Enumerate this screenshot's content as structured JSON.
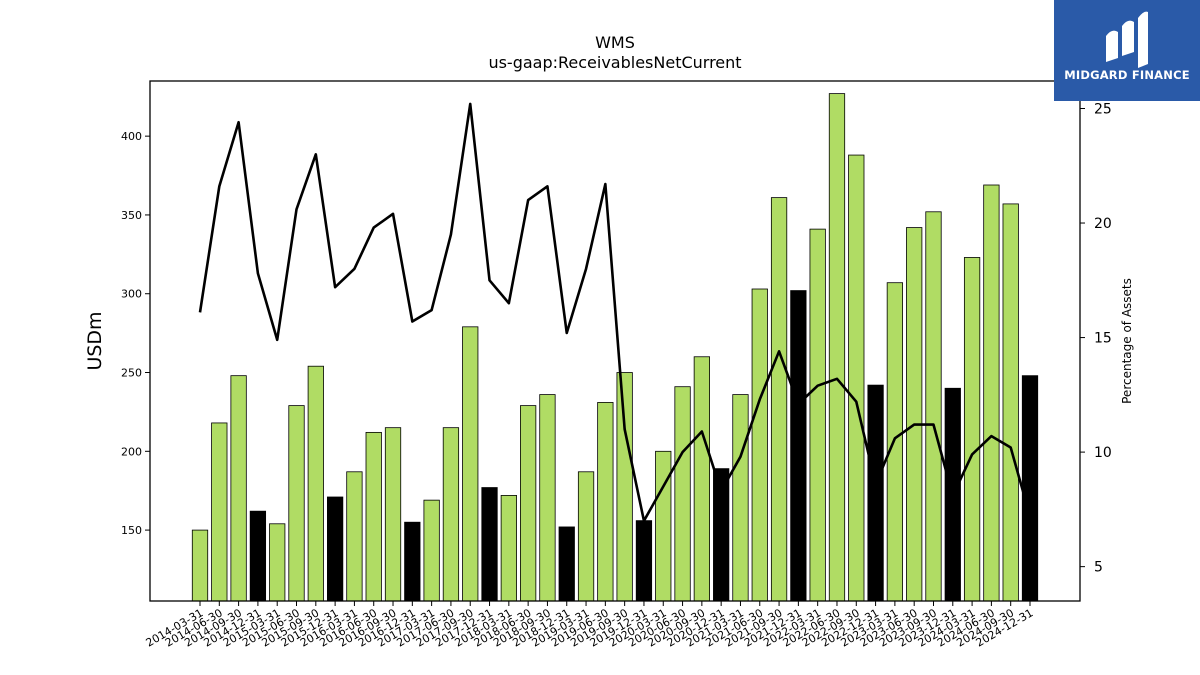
{
  "chart_data": {
    "type": "bar",
    "title": "WMS",
    "subtitle": "us-gaap:ReceivablesNetCurrent",
    "ylabel": "USDm",
    "y2label": "Percentage of Assets",
    "ylim": [
      105,
      435
    ],
    "y2lim": [
      3.5,
      26.2
    ],
    "yticks": [
      150,
      200,
      250,
      300,
      350,
      400
    ],
    "y2ticks": [
      5,
      10,
      15,
      20,
      25
    ],
    "categories": [
      "2014-03-31",
      "2014-06-30",
      "2014-09-30",
      "2014-12-31",
      "2015-03-31",
      "2015-06-30",
      "2015-09-30",
      "2015-12-31",
      "2016-03-31",
      "2016-06-30",
      "2016-09-30",
      "2016-12-31",
      "2017-03-31",
      "2017-06-30",
      "2017-09-30",
      "2017-12-31",
      "2018-03-31",
      "2018-06-30",
      "2018-09-30",
      "2018-12-31",
      "2019-03-31",
      "2019-06-30",
      "2019-09-30",
      "2019-12-31",
      "2020-03-31",
      "2020-06-30",
      "2020-09-30",
      "2020-12-31",
      "2021-03-31",
      "2021-06-30",
      "2021-09-30",
      "2021-12-31",
      "2022-03-31",
      "2022-06-30",
      "2022-09-30",
      "2022-12-31",
      "2023-03-31",
      "2023-06-30",
      "2023-09-30",
      "2023-12-31",
      "2024-03-31",
      "2024-06-30",
      "2024-09-30",
      "2024-12-31"
    ],
    "series": [
      {
        "kind": "bar",
        "values": [
          150,
          218,
          248,
          162,
          154,
          229,
          254,
          171,
          187,
          212,
          215,
          155,
          169,
          215,
          279,
          177,
          172,
          229,
          236,
          152,
          187,
          231,
          250,
          156,
          200,
          241,
          260,
          189,
          236,
          303,
          361,
          302,
          341,
          427,
          388,
          242,
          307,
          342,
          352,
          240,
          323,
          369,
          357,
          248
        ],
        "highlight": [
          false,
          false,
          false,
          true,
          false,
          false,
          false,
          true,
          false,
          false,
          false,
          true,
          false,
          false,
          false,
          true,
          false,
          false,
          false,
          true,
          false,
          false,
          false,
          true,
          false,
          false,
          false,
          true,
          false,
          false,
          false,
          true,
          false,
          false,
          false,
          true,
          false,
          false,
          false,
          true,
          false,
          false,
          false,
          true
        ],
        "color": "#b0dc64",
        "highlight_color": "#000000"
      },
      {
        "kind": "line",
        "axis": "right",
        "values": [
          16.1,
          21.6,
          24.4,
          17.8,
          14.9,
          20.6,
          23.0,
          17.2,
          18.0,
          19.8,
          20.4,
          15.7,
          16.2,
          19.5,
          25.2,
          17.5,
          16.5,
          21.0,
          21.6,
          15.2,
          18.0,
          21.7,
          11.0,
          7.0,
          8.5,
          10.0,
          10.9,
          8.3,
          9.8,
          12.3,
          14.4,
          12.1,
          12.9,
          13.2,
          12.2,
          8.6,
          10.6,
          11.2,
          11.2,
          8.1,
          9.9,
          10.7,
          10.2,
          7.2
        ],
        "color": "#000000"
      }
    ]
  },
  "logo": {
    "text": "MIDGARD FINANCE"
  }
}
